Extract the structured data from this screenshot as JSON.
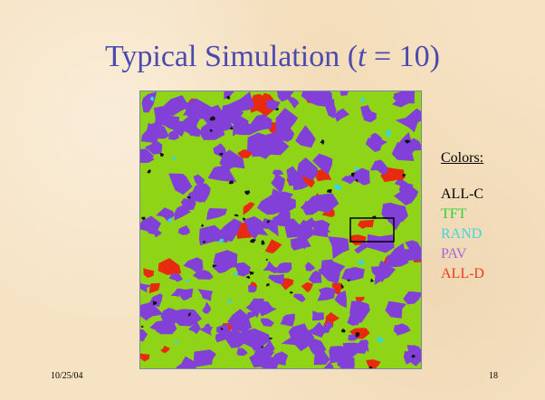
{
  "slide": {
    "title_prefix": "Typical Simulation (",
    "title_var": "t",
    "title_suffix": " = 10)",
    "date": "10/25/04",
    "page_number": "18"
  },
  "legend": {
    "heading": "Colors:",
    "items": [
      {
        "label": "ALL-C",
        "color": "#000000"
      },
      {
        "label": "TFT",
        "color": "#2fd12f"
      },
      {
        "label": "RAND",
        "color": "#3fd6e0"
      },
      {
        "label": "PAV",
        "color": "#a566d8"
      },
      {
        "label": "ALL-D",
        "color": "#f03a18"
      }
    ]
  },
  "simulation": {
    "background_color": "#8fd417",
    "pav_color": "#8340d8",
    "alld_color": "#e82b0f",
    "rand_color": "#38d4e0",
    "allc_color": "#111111",
    "highlight_box_color": "#000000"
  }
}
